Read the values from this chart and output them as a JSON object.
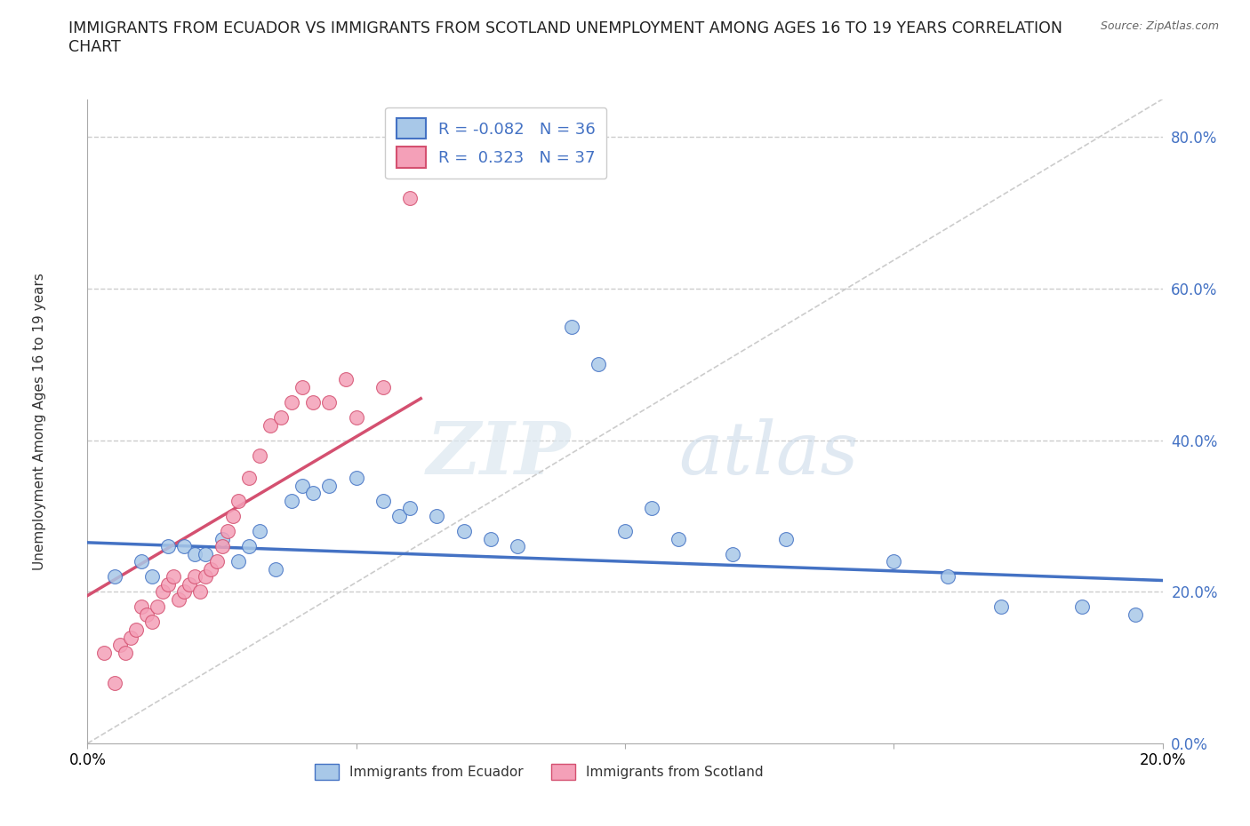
{
  "title_line1": "IMMIGRANTS FROM ECUADOR VS IMMIGRANTS FROM SCOTLAND UNEMPLOYMENT AMONG AGES 16 TO 19 YEARS CORRELATION",
  "title_line2": "CHART",
  "source": "Source: ZipAtlas.com",
  "ylabel": "Unemployment Among Ages 16 to 19 years",
  "xlim": [
    0.0,
    0.2
  ],
  "ylim": [
    0.0,
    0.85
  ],
  "yticks": [
    0.0,
    0.2,
    0.4,
    0.6,
    0.8
  ],
  "ytick_labels": [
    "0.0%",
    "20.0%",
    "40.0%",
    "60.0%",
    "80.0%"
  ],
  "xticks": [
    0.0,
    0.05,
    0.1,
    0.15,
    0.2
  ],
  "xtick_labels": [
    "0.0%",
    "",
    "",
    "",
    "20.0%"
  ],
  "R_ecuador": -0.082,
  "N_ecuador": 36,
  "R_scotland": 0.323,
  "N_scotland": 37,
  "color_ecuador": "#a8c8e8",
  "color_scotland": "#f4a0b8",
  "trendline_ecuador": "#4472c4",
  "trendline_scotland": "#d45070",
  "ecuador_x": [
    0.005,
    0.01,
    0.012,
    0.015,
    0.018,
    0.02,
    0.022,
    0.025,
    0.028,
    0.03,
    0.032,
    0.035,
    0.038,
    0.04,
    0.042,
    0.045,
    0.05,
    0.055,
    0.058,
    0.06,
    0.065,
    0.07,
    0.075,
    0.08,
    0.09,
    0.095,
    0.1,
    0.105,
    0.11,
    0.12,
    0.13,
    0.15,
    0.16,
    0.17,
    0.185,
    0.195
  ],
  "ecuador_y": [
    0.22,
    0.24,
    0.22,
    0.26,
    0.26,
    0.25,
    0.25,
    0.27,
    0.24,
    0.26,
    0.28,
    0.23,
    0.32,
    0.34,
    0.33,
    0.34,
    0.35,
    0.32,
    0.3,
    0.31,
    0.3,
    0.28,
    0.27,
    0.26,
    0.55,
    0.5,
    0.28,
    0.31,
    0.27,
    0.25,
    0.27,
    0.24,
    0.22,
    0.18,
    0.18,
    0.17
  ],
  "scotland_x": [
    0.003,
    0.005,
    0.006,
    0.007,
    0.008,
    0.009,
    0.01,
    0.011,
    0.012,
    0.013,
    0.014,
    0.015,
    0.016,
    0.017,
    0.018,
    0.019,
    0.02,
    0.021,
    0.022,
    0.023,
    0.024,
    0.025,
    0.026,
    0.027,
    0.028,
    0.03,
    0.032,
    0.034,
    0.036,
    0.038,
    0.04,
    0.042,
    0.045,
    0.048,
    0.05,
    0.055,
    0.06
  ],
  "scotland_y": [
    0.12,
    0.08,
    0.13,
    0.12,
    0.14,
    0.15,
    0.18,
    0.17,
    0.16,
    0.18,
    0.2,
    0.21,
    0.22,
    0.19,
    0.2,
    0.21,
    0.22,
    0.2,
    0.22,
    0.23,
    0.24,
    0.26,
    0.28,
    0.3,
    0.32,
    0.35,
    0.38,
    0.42,
    0.43,
    0.45,
    0.47,
    0.45,
    0.45,
    0.48,
    0.43,
    0.47,
    0.72
  ],
  "watermark_zip": "ZIP",
  "watermark_atlas": "atlas",
  "background_color": "#ffffff",
  "grid_color": "#cccccc"
}
